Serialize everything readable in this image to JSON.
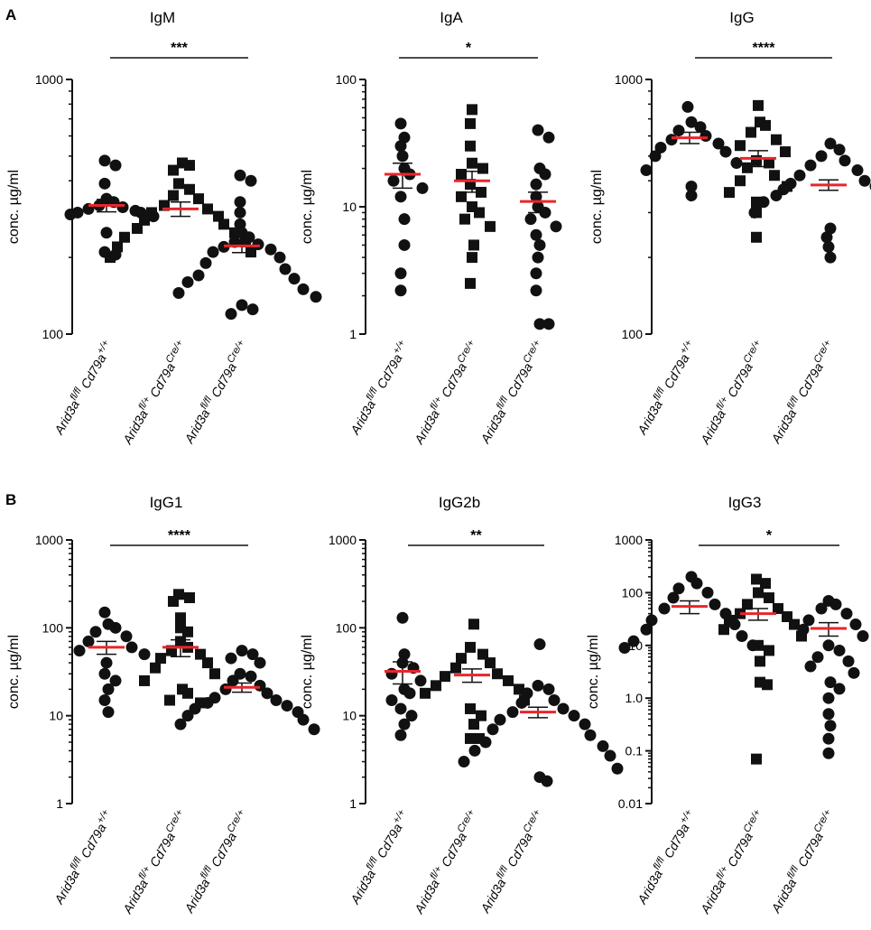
{
  "panel_labels": {
    "a": "A",
    "b": "B"
  },
  "groups": [
    {
      "base": "Arid3a",
      "sup1": "fl/fl",
      "mid": " Cd79a",
      "sup2": "+/+"
    },
    {
      "base": "Arid3a",
      "sup1": "fl/+",
      "mid": " Cd79a",
      "sup2": "Cre/+"
    },
    {
      "base": "Arid3a",
      "sup1": "fl/fl",
      "mid": " Cd79a",
      "sup2": "Cre/+"
    }
  ],
  "colors": {
    "points": "#111111",
    "mean": "#e8262b",
    "axis": "#111111"
  },
  "chart_data": [
    {
      "type": "scatter",
      "title": "IgM",
      "ylabel": "conc. µg/ml",
      "yscale": "log",
      "ylim": [
        100,
        1000
      ],
      "yticks": [
        100,
        1000
      ],
      "ytick_labels": [
        "100",
        "1000"
      ],
      "significance": "***",
      "markers": [
        "circle",
        "square",
        "circle"
      ],
      "series": [
        {
          "name": "Arid3a fl/fl Cd79a +/+",
          "values": [
            480,
            460,
            390,
            340,
            330,
            320,
            315,
            310,
            305,
            300,
            300,
            295,
            290,
            250,
            210,
            205
          ],
          "mean": 320,
          "sem": 18
        },
        {
          "name": "Arid3a fl/+ Cd79a Cre/+",
          "values": [
            470,
            460,
            440,
            390,
            370,
            350,
            340,
            320,
            310,
            300,
            290,
            280,
            270,
            260,
            250,
            240,
            230,
            220,
            210,
            200
          ],
          "mean": 310,
          "sem": 20
        },
        {
          "name": "Arid3a fl/fl Cd79a Cre/+",
          "values": [
            420,
            400,
            330,
            300,
            270,
            250,
            240,
            230,
            225,
            220,
            215,
            210,
            200,
            190,
            180,
            170,
            165,
            160,
            150,
            145,
            140,
            130,
            125,
            120
          ],
          "mean": 222,
          "sem": 13
        }
      ]
    },
    {
      "type": "scatter",
      "title": "IgA",
      "ylabel": "conc. µg/ml",
      "yscale": "log",
      "ylim": [
        1,
        100
      ],
      "yticks": [
        1,
        10,
        100
      ],
      "ytick_labels": [
        "1",
        "10",
        "100"
      ],
      "significance": "*",
      "markers": [
        "circle",
        "square",
        "circle"
      ],
      "series": [
        {
          "name": "Arid3a fl/fl Cd79a +/+",
          "values": [
            45,
            35,
            30,
            25,
            20,
            18,
            16,
            14,
            12,
            8,
            5,
            3,
            2.2
          ],
          "mean": 18,
          "sem": 4
        },
        {
          "name": "Arid3a fl/+ Cd79a Cre/+",
          "values": [
            58,
            45,
            30,
            22,
            20,
            18,
            15,
            13,
            12,
            10,
            9,
            8,
            7,
            5,
            4,
            2.5
          ],
          "mean": 16,
          "sem": 3
        },
        {
          "name": "Arid3a fl/fl Cd79a Cre/+",
          "values": [
            40,
            35,
            20,
            18,
            15,
            12,
            10,
            9,
            8,
            7,
            6,
            5,
            4,
            3,
            2.2,
            1.2,
            1.2
          ],
          "mean": 11,
          "sem": 2
        }
      ]
    },
    {
      "type": "scatter",
      "title": "IgG",
      "ylabel": "conc. µg/ml",
      "yscale": "log",
      "ylim": [
        100,
        1000
      ],
      "yticks": [
        100,
        1000
      ],
      "ytick_labels": [
        "100",
        "1000"
      ],
      "significance": "****",
      "markers": [
        "circle",
        "square",
        "circle"
      ],
      "series": [
        {
          "name": "Arid3a fl/fl Cd79a +/+",
          "values": [
            780,
            680,
            650,
            630,
            600,
            580,
            560,
            540,
            520,
            500,
            470,
            440,
            380,
            350
          ],
          "mean": 590,
          "sem": 30
        },
        {
          "name": "Arid3a fl/+ Cd79a Cre/+",
          "values": [
            790,
            680,
            660,
            620,
            580,
            550,
            520,
            480,
            470,
            450,
            420,
            400,
            380,
            360,
            330,
            300,
            240
          ],
          "mean": 490,
          "sem": 35
        },
        {
          "name": "Arid3a fl/fl Cd79a Cre/+",
          "values": [
            560,
            530,
            500,
            480,
            460,
            440,
            420,
            400,
            390,
            380,
            370,
            360,
            350,
            340,
            330,
            320,
            300,
            280,
            260,
            240,
            220,
            200
          ],
          "mean": 385,
          "sem": 18
        }
      ]
    },
    {
      "type": "scatter",
      "title": "IgG1",
      "ylabel": "conc. µg/ml",
      "yscale": "log",
      "ylim": [
        1,
        1000
      ],
      "yticks": [
        1,
        10,
        100,
        1000
      ],
      "ytick_labels": [
        "1",
        "10",
        "100",
        "1000"
      ],
      "significance": "****",
      "markers": [
        "circle",
        "square",
        "circle"
      ],
      "series": [
        {
          "name": "Arid3a fl/fl Cd79a +/+",
          "values": [
            150,
            110,
            100,
            90,
            80,
            70,
            60,
            55,
            50,
            40,
            30,
            25,
            20,
            15,
            11
          ],
          "mean": 60,
          "sem": 10
        },
        {
          "name": "Arid3a fl/+ Cd79a Cre/+",
          "values": [
            240,
            220,
            200,
            130,
            100,
            90,
            70,
            60,
            55,
            50,
            45,
            40,
            35,
            30,
            25,
            20,
            18,
            15,
            14
          ],
          "mean": 60,
          "sem": 13
        },
        {
          "name": "Arid3a fl/fl Cd79a Cre/+",
          "values": [
            55,
            50,
            45,
            40,
            30,
            28,
            25,
            22,
            20,
            18,
            16,
            15,
            14,
            13,
            12,
            11,
            10,
            9,
            8,
            7
          ],
          "mean": 21,
          "sem": 2.5
        }
      ]
    },
    {
      "type": "scatter",
      "title": "IgG2b",
      "ylabel": "conc. µg/ml",
      "yscale": "log",
      "ylim": [
        1,
        1000
      ],
      "yticks": [
        1,
        10,
        100,
        1000
      ],
      "ytick_labels": [
        "1",
        "10",
        "100",
        "1000"
      ],
      "significance": "**",
      "markers": [
        "circle",
        "square",
        "circle"
      ],
      "series": [
        {
          "name": "Arid3a fl/fl Cd79a +/+",
          "values": [
            130,
            50,
            40,
            35,
            30,
            25,
            20,
            18,
            15,
            12,
            10,
            8,
            6
          ],
          "mean": 32,
          "sem": 9
        },
        {
          "name": "Arid3a fl/+ Cd79a Cre/+",
          "values": [
            110,
            60,
            50,
            45,
            40,
            35,
            30,
            28,
            25,
            22,
            20,
            18,
            15,
            12,
            10,
            8,
            5.5,
            5.5
          ],
          "mean": 29,
          "sem": 5
        },
        {
          "name": "Arid3a fl/fl Cd79a Cre/+",
          "values": [
            65,
            22,
            20,
            18,
            15,
            14,
            12,
            11,
            10,
            9,
            8,
            7,
            6,
            5,
            4.5,
            4,
            3.5,
            3,
            2.5,
            2,
            1.8
          ],
          "mean": 11,
          "sem": 1.5
        }
      ]
    },
    {
      "type": "scatter",
      "title": "IgG3",
      "ylabel": "conc. µg/ml",
      "yscale": "log",
      "ylim": [
        0.01,
        1000
      ],
      "yticks": [
        0.01,
        0.1,
        1,
        10,
        100,
        1000
      ],
      "ytick_labels": [
        "0.01",
        "0.1",
        "1.0",
        "10",
        "100",
        "1000"
      ],
      "significance": "*",
      "markers": [
        "circle",
        "square",
        "circle"
      ],
      "series": [
        {
          "name": "Arid3a fl/fl Cd79a +/+",
          "values": [
            200,
            150,
            120,
            100,
            80,
            60,
            50,
            40,
            30,
            25,
            20,
            15,
            12,
            10,
            9
          ],
          "mean": 55,
          "sem": 15
        },
        {
          "name": "Arid3a fl/+ Cd79a Cre/+",
          "values": [
            180,
            150,
            100,
            80,
            60,
            50,
            40,
            35,
            30,
            25,
            20,
            15,
            10,
            8,
            5,
            2,
            1.8,
            0.07
          ],
          "mean": 40,
          "sem": 10
        },
        {
          "name": "Arid3a fl/fl Cd79a Cre/+",
          "values": [
            70,
            60,
            50,
            40,
            30,
            25,
            20,
            15,
            10,
            8,
            6,
            5,
            4,
            3,
            2,
            1.5,
            1,
            0.5,
            0.3,
            0.17,
            0.09
          ],
          "mean": 21,
          "sem": 6
        }
      ]
    }
  ]
}
